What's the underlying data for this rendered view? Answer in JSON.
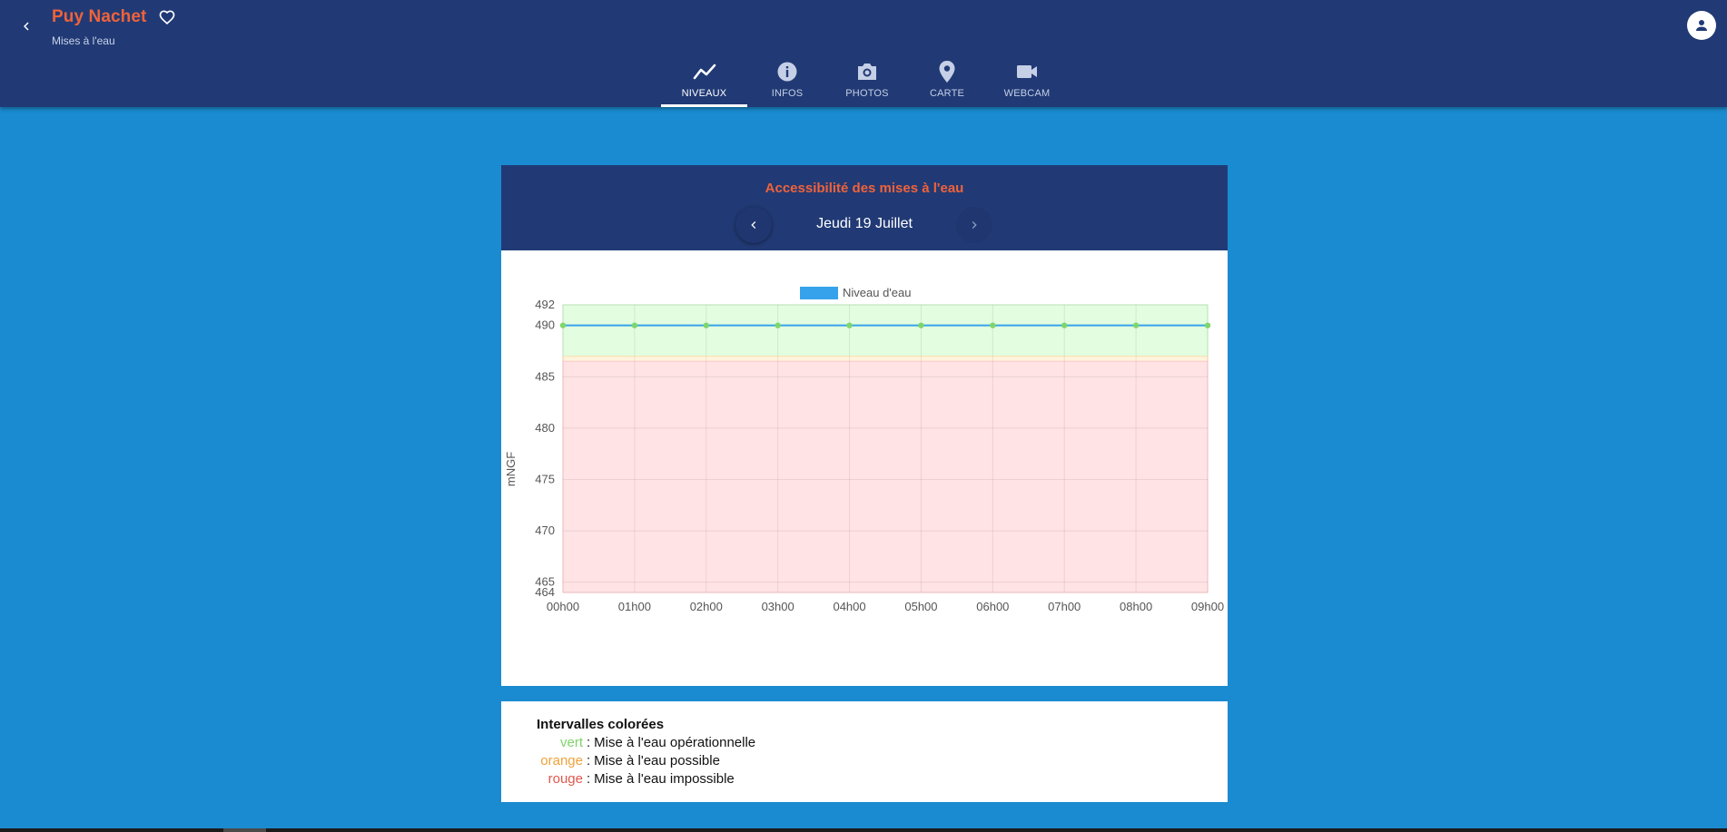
{
  "header": {
    "title": "Puy Nachet",
    "subtitle": "Mises à l'eau",
    "back_icon": "chevron-left-icon",
    "favorite_icon": "heart-outline-icon",
    "account_icon": "account-icon"
  },
  "tabs": [
    {
      "label": "NIVEAUX",
      "icon": "chart-line-icon",
      "active": true
    },
    {
      "label": "INFOS",
      "icon": "info-icon",
      "active": false
    },
    {
      "label": "PHOTOS",
      "icon": "camera-icon",
      "active": false
    },
    {
      "label": "CARTE",
      "icon": "map-marker-icon",
      "active": false
    },
    {
      "label": "WEBCAM",
      "icon": "video-camera-icon",
      "active": false
    }
  ],
  "card": {
    "title": "Accessibilité des mises à l'eau",
    "date": "Jeudi 19 Juillet"
  },
  "chart_data": {
    "type": "line",
    "title": "",
    "xlabel": "",
    "ylabel": "mNGF",
    "legend": {
      "position": "top",
      "entries": [
        "Niveau d'eau"
      ]
    },
    "grid": true,
    "ylim": [
      464,
      492
    ],
    "y_ticks": [
      492,
      490,
      485,
      480,
      475,
      470,
      465,
      464
    ],
    "categories": [
      "00h00",
      "01h00",
      "02h00",
      "03h00",
      "04h00",
      "05h00",
      "06h00",
      "07h00",
      "08h00",
      "09h00"
    ],
    "series": [
      {
        "name": "Niveau d'eau",
        "values": [
          490,
          490,
          490,
          490,
          490,
          490,
          490,
          490,
          490,
          490
        ],
        "color": "#36a2eb",
        "point_color": "#7ed66b"
      }
    ],
    "bands": [
      {
        "name": "vert",
        "from": 487,
        "to": 492,
        "color": "#e2fde0",
        "border": "#c7f5c2"
      },
      {
        "name": "orange",
        "from": 486.5,
        "to": 487,
        "color": "#fff3dc",
        "border": "#ffe0b0"
      },
      {
        "name": "rouge",
        "from": 464,
        "to": 486.5,
        "color": "#ffe3e5",
        "border": "#ffc9cd"
      }
    ]
  },
  "legend_box": {
    "title": "Intervalles colorées",
    "items": [
      {
        "key": "vert",
        "sep": ":",
        "text": "Mise à l'eau opérationnelle",
        "color": "#7fd36a"
      },
      {
        "key": "orange",
        "sep": ":",
        "text": "Mise à l'eau possible",
        "color": "#f0a13a"
      },
      {
        "key": "rouge",
        "sep": ":",
        "text": "Mise à l'eau impossible",
        "color": "#e0574c"
      }
    ]
  },
  "colors": {
    "appbar": "#213a75",
    "background": "#1a8bd0",
    "accent": "#f0623a"
  }
}
